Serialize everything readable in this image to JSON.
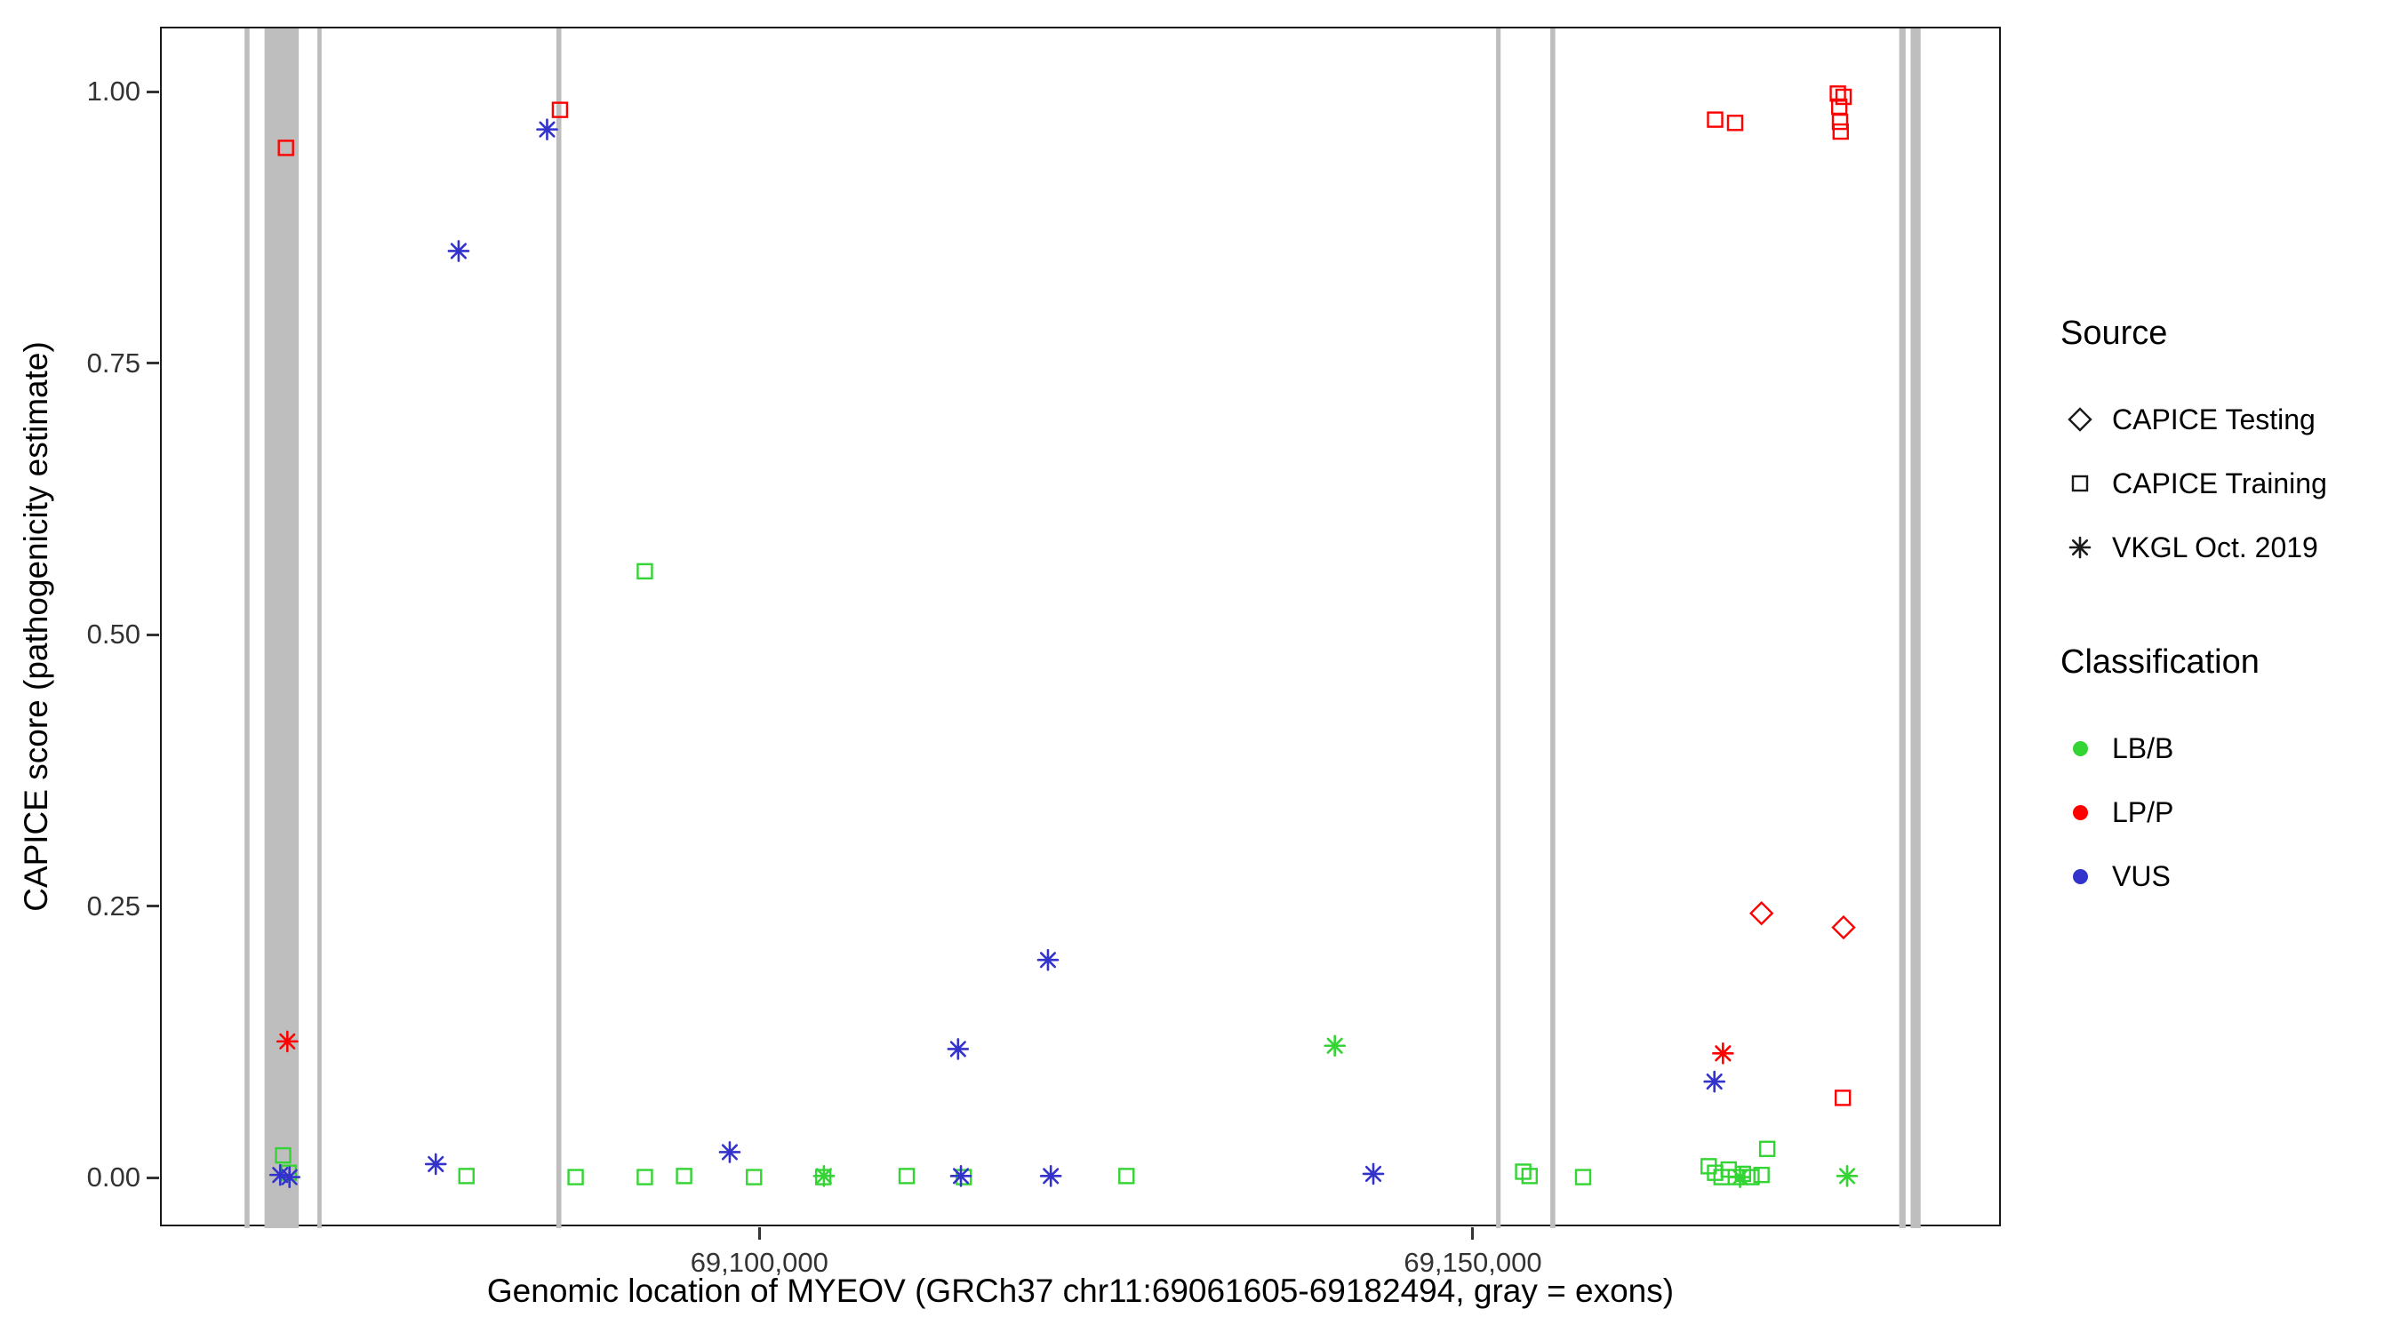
{
  "figure": {
    "background": "#FFFFFF"
  },
  "legend": {
    "source": {
      "title": "Source",
      "items": [
        {
          "label": "CAPICE Testing",
          "shape": "diamond"
        },
        {
          "label": "CAPICE Training",
          "shape": "square"
        },
        {
          "label": "VKGL Oct. 2019",
          "shape": "asterisk"
        }
      ]
    },
    "classification": {
      "title": "Classification",
      "items": [
        {
          "label": "LB/B",
          "color": "#33D433"
        },
        {
          "label": "LP/P",
          "color": "#FF0000"
        },
        {
          "label": "VUS",
          "color": "#3333CC"
        }
      ]
    }
  },
  "chart_data": {
    "type": "scatter",
    "title": "",
    "xlabel": "Genomic location of MYEOV (GRCh37 chr11:69061605-69182494, gray = exons)",
    "ylabel": "CAPICE score (pathogenicity estimate)",
    "xlim": [
      69058000,
      69187000
    ],
    "ylim": [
      -0.045,
      1.06
    ],
    "grid": false,
    "legend_position": "right",
    "x_ticks": [
      {
        "value": 69100000,
        "label": "69,100,000"
      },
      {
        "value": 69150000,
        "label": "69,150,000"
      }
    ],
    "y_ticks": [
      {
        "value": 0.0,
        "label": "0.00"
      },
      {
        "value": 0.25,
        "label": "0.25"
      },
      {
        "value": 0.5,
        "label": "0.50"
      },
      {
        "value": 0.75,
        "label": "0.75"
      },
      {
        "value": 1.0,
        "label": "1.00"
      }
    ],
    "exon_color": "#BEBEBE",
    "exons": [
      [
        69063800,
        69064150
      ],
      [
        69065200,
        69067600
      ],
      [
        69068900,
        69069200
      ],
      [
        69085650,
        69086000
      ],
      [
        69151500,
        69151820
      ],
      [
        69155300,
        69155650
      ],
      [
        69179750,
        69180200
      ],
      [
        69180550,
        69181250
      ]
    ],
    "classification_colors": {
      "LB/B": "#33D433",
      "LP/P": "#FF0000",
      "VUS": "#3333CC"
    },
    "source_shapes": {
      "CAPICE Testing": "diamond",
      "CAPICE Training": "square",
      "VKGL Oct. 2019": "asterisk"
    },
    "points_format": [
      "genomic_position",
      "capice_score",
      "classification",
      "source"
    ],
    "points": [
      [
        69066700,
        0.95,
        "LP/P",
        "CAPICE Training"
      ],
      [
        69085900,
        0.985,
        "LP/P",
        "CAPICE Training"
      ],
      [
        69166850,
        0.976,
        "LP/P",
        "CAPICE Training"
      ],
      [
        69168250,
        0.973,
        "LP/P",
        "CAPICE Training"
      ],
      [
        69175450,
        1.0,
        "LP/P",
        "CAPICE Training"
      ],
      [
        69175850,
        0.997,
        "LP/P",
        "CAPICE Training"
      ],
      [
        69175550,
        0.988,
        "LP/P",
        "CAPICE Training"
      ],
      [
        69175600,
        0.974,
        "LP/P",
        "CAPICE Training"
      ],
      [
        69175650,
        0.965,
        "LP/P",
        "CAPICE Training"
      ],
      [
        69175800,
        0.075,
        "LP/P",
        "CAPICE Training"
      ],
      [
        69066500,
        0.022,
        "LB/B",
        "CAPICE Training"
      ],
      [
        69066900,
        0.006,
        "LB/B",
        "CAPICE Training"
      ],
      [
        69079350,
        0.003,
        "LB/B",
        "CAPICE Training"
      ],
      [
        69087000,
        0.002,
        "LB/B",
        "CAPICE Training"
      ],
      [
        69091850,
        0.56,
        "LB/B",
        "CAPICE Training"
      ],
      [
        69091850,
        0.002,
        "LB/B",
        "CAPICE Training"
      ],
      [
        69094600,
        0.003,
        "LB/B",
        "CAPICE Training"
      ],
      [
        69099500,
        0.002,
        "LB/B",
        "CAPICE Training"
      ],
      [
        69104350,
        0.002,
        "LB/B",
        "CAPICE Training"
      ],
      [
        69110200,
        0.003,
        "LB/B",
        "CAPICE Training"
      ],
      [
        69114200,
        0.002,
        "LB/B",
        "CAPICE Training"
      ],
      [
        69125600,
        0.003,
        "LB/B",
        "CAPICE Training"
      ],
      [
        69153400,
        0.007,
        "LB/B",
        "CAPICE Training"
      ],
      [
        69153850,
        0.003,
        "LB/B",
        "CAPICE Training"
      ],
      [
        69157600,
        0.002,
        "LB/B",
        "CAPICE Training"
      ],
      [
        69166400,
        0.012,
        "LB/B",
        "CAPICE Training"
      ],
      [
        69166850,
        0.006,
        "LB/B",
        "CAPICE Training"
      ],
      [
        69167300,
        0.002,
        "LB/B",
        "CAPICE Training"
      ],
      [
        69167800,
        0.009,
        "LB/B",
        "CAPICE Training"
      ],
      [
        69168300,
        0.002,
        "LB/B",
        "CAPICE Training"
      ],
      [
        69168800,
        0.005,
        "LB/B",
        "CAPICE Training"
      ],
      [
        69169400,
        0.002,
        "LB/B",
        "CAPICE Training"
      ],
      [
        69170100,
        0.004,
        "LB/B",
        "CAPICE Training"
      ],
      [
        69170500,
        0.028,
        "LB/B",
        "CAPICE Training"
      ],
      [
        69170100,
        0.245,
        "LP/P",
        "CAPICE Testing"
      ],
      [
        69175850,
        0.232,
        "LP/P",
        "CAPICE Testing"
      ],
      [
        69066300,
        0.004,
        "VUS",
        "VKGL Oct. 2019"
      ],
      [
        69066950,
        0.002,
        "VUS",
        "VKGL Oct. 2019"
      ],
      [
        69077200,
        0.014,
        "VUS",
        "VKGL Oct. 2019"
      ],
      [
        69078800,
        0.855,
        "VUS",
        "VKGL Oct. 2019"
      ],
      [
        69085000,
        0.967,
        "VUS",
        "VKGL Oct. 2019"
      ],
      [
        69097800,
        0.025,
        "VUS",
        "VKGL Oct. 2019"
      ],
      [
        69113800,
        0.12,
        "VUS",
        "VKGL Oct. 2019"
      ],
      [
        69114000,
        0.003,
        "VUS",
        "VKGL Oct. 2019"
      ],
      [
        69120100,
        0.202,
        "VUS",
        "VKGL Oct. 2019"
      ],
      [
        69120300,
        0.003,
        "VUS",
        "VKGL Oct. 2019"
      ],
      [
        69142900,
        0.005,
        "VUS",
        "VKGL Oct. 2019"
      ],
      [
        69166800,
        0.09,
        "VUS",
        "VKGL Oct. 2019"
      ],
      [
        69066800,
        0.127,
        "LP/P",
        "VKGL Oct. 2019"
      ],
      [
        69167400,
        0.116,
        "LP/P",
        "VKGL Oct. 2019"
      ],
      [
        69140200,
        0.123,
        "LB/B",
        "VKGL Oct. 2019"
      ],
      [
        69104400,
        0.003,
        "LB/B",
        "VKGL Oct. 2019"
      ],
      [
        69168600,
        0.002,
        "LB/B",
        "VKGL Oct. 2019"
      ],
      [
        69176100,
        0.003,
        "LB/B",
        "VKGL Oct. 2019"
      ]
    ]
  }
}
